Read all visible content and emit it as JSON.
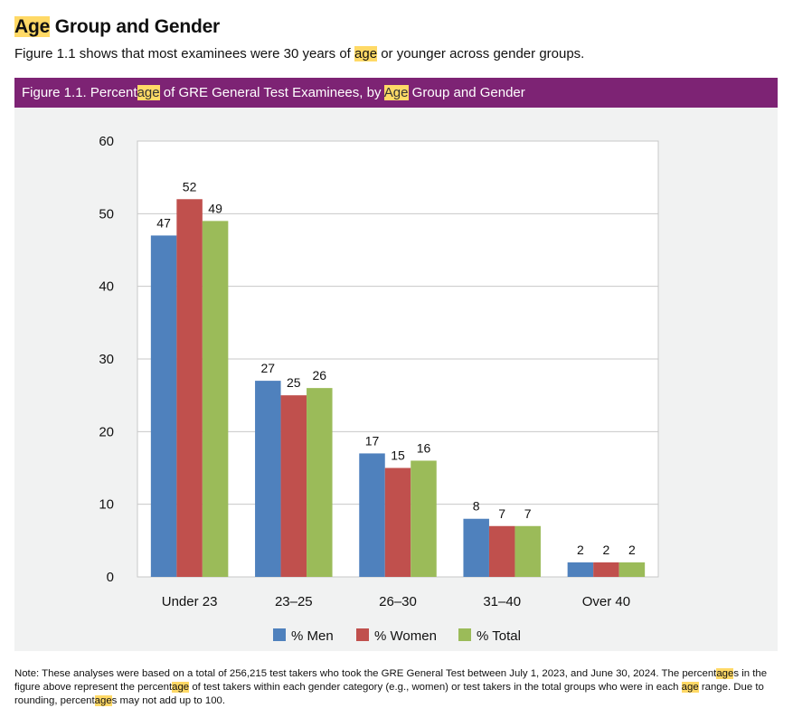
{
  "heading": {
    "highlight": "Age",
    "rest": " Group and Gender"
  },
  "intro": {
    "before": "Figure 1.1 shows that most examinees were 30 years of ",
    "highlight": "age",
    "after": " or younger across gender groups."
  },
  "figure_title": {
    "p1": "Figure 1.1. Percent",
    "h1": "age",
    "p2": " of GRE General Test Examinees, by ",
    "h2": "Age",
    "p3": " Group and Gender"
  },
  "chart_data": {
    "type": "bar",
    "title": "Figure 1.1. Percentage of GRE General Test Examinees, by Age Group and Gender",
    "categories": [
      "Under 23",
      "23–25",
      "26–30",
      "31–40",
      "Over 40"
    ],
    "series": [
      {
        "name": "% Men",
        "color": "#4f81bd",
        "values": [
          47,
          27,
          17,
          8,
          2
        ]
      },
      {
        "name": "% Women",
        "color": "#c0504d",
        "values": [
          52,
          25,
          15,
          7,
          2
        ]
      },
      {
        "name": "% Total",
        "color": "#9bbb59",
        "values": [
          49,
          26,
          16,
          7,
          2
        ]
      }
    ],
    "ylim": [
      0,
      60
    ],
    "yticks": [
      0,
      10,
      20,
      30,
      40,
      50,
      60
    ],
    "xlabel": "",
    "ylabel": "",
    "grid": true,
    "legend": "bottom"
  },
  "note": {
    "t1": "Note: These analyses were based on a total of 256,215 test takers who took the GRE General Test between July 1, 2023, and June 30, 2024. The percent",
    "h1": "age",
    "t2": "s in the figure above represent the percent",
    "h2": "age",
    "t3": " of test takers within each gender category (e.g., women) or test takers in the total groups who were in each ",
    "h3": "age",
    "t4": " range. Due to rounding, percent",
    "h4": "age",
    "t5": "s may not add up to 100."
  }
}
